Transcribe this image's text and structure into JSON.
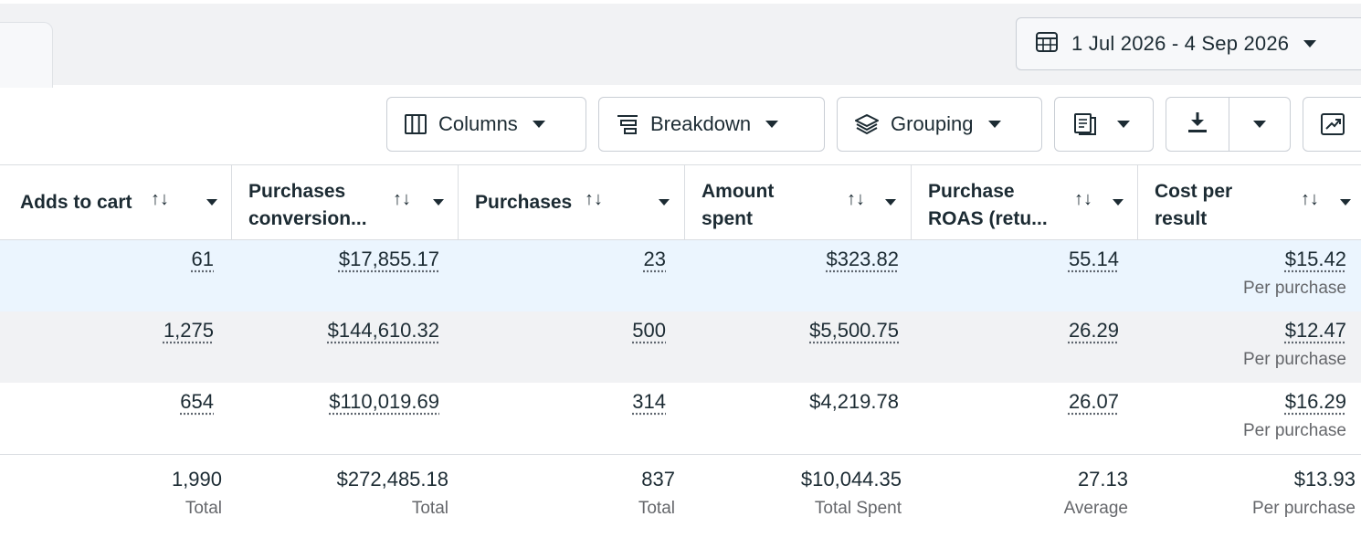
{
  "date_range": {
    "label": "1 Jul 2026 - 4 Sep 2026"
  },
  "toolbar": {
    "columns_label": "Columns",
    "breakdown_label": "Breakdown",
    "grouping_label": "Grouping"
  },
  "table": {
    "headers": [
      {
        "line1": "Adds to cart",
        "line2": ""
      },
      {
        "line1": "Purchases",
        "line2": "conversion..."
      },
      {
        "line1": "Purchases",
        "line2": ""
      },
      {
        "line1": "Amount",
        "line2": "spent"
      },
      {
        "line1": "Purchase",
        "line2": "ROAS (retu..."
      },
      {
        "line1": "Cost per",
        "line2": "result"
      }
    ],
    "rows": [
      {
        "adds": "61",
        "conv_value": "$17,855.17",
        "purchases": "23",
        "spent": "$323.82",
        "roas": "55.14",
        "cpr": "$15.42",
        "cpr_sub": "Per purchase"
      },
      {
        "adds": "1,275",
        "conv_value": "$144,610.32",
        "purchases": "500",
        "spent": "$5,500.75",
        "roas": "26.29",
        "cpr": "$12.47",
        "cpr_sub": "Per purchase"
      },
      {
        "adds": "654",
        "conv_value": "$110,019.69",
        "purchases": "314",
        "spent": "$4,219.78",
        "roas": "26.07",
        "cpr": "$16.29",
        "cpr_sub": "Per purchase"
      }
    ],
    "totals": {
      "adds": "1,990",
      "adds_sub": "Total",
      "conv_value": "$272,485.18",
      "conv_value_sub": "Total",
      "purchases": "837",
      "purchases_sub": "Total",
      "spent": "$10,044.35",
      "spent_sub": "Total Spent",
      "roas": "27.13",
      "roas_sub": "Average",
      "cpr": "$13.93",
      "cpr_sub": "Per purchase"
    }
  }
}
